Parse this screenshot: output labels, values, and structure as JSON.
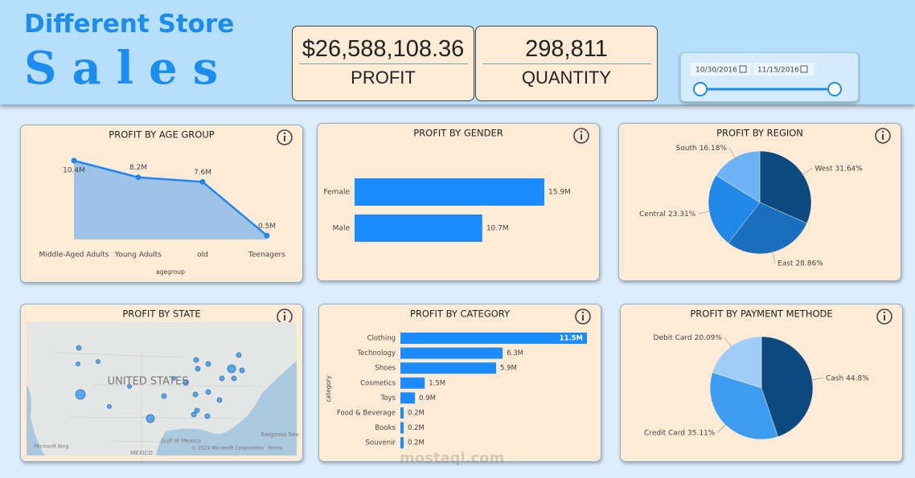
{
  "header": {
    "title": "Different Store",
    "subtitle": "Sales"
  },
  "kpis": [
    {
      "value": "$26,588,108.36",
      "label": "PROFIT"
    },
    {
      "value": "298,811",
      "label": "QUANTITY"
    }
  ],
  "date_range": {
    "start": "10/30/2016",
    "end": "11/15/2016"
  },
  "chart_data": [
    {
      "type": "area",
      "title": "PROFIT BY AGE GROUP",
      "x_label": "agegroup",
      "categories": [
        "Middle-Aged Adults",
        "Young Adults",
        "old",
        "Teenagers"
      ],
      "values": [
        10.4,
        8.2,
        7.6,
        0.5
      ],
      "value_labels": [
        "10.4M",
        "8.2M",
        "7.6M",
        "0.5M"
      ],
      "color": "#1e88f0",
      "fill": "#9fc3e6"
    },
    {
      "type": "hbar",
      "title": "PROFIT BY GENDER",
      "categories": [
        "Female",
        "Male"
      ],
      "values": [
        15.9,
        10.7
      ],
      "value_labels": [
        "15.9M",
        "10.7M"
      ],
      "color": "#1a8cff"
    },
    {
      "type": "pie",
      "title": "PROFIT BY REGION",
      "categories": [
        "West",
        "East",
        "Central",
        "South"
      ],
      "values": [
        31.64,
        28.86,
        23.31,
        16.18
      ],
      "value_labels": [
        "31.64%",
        "28.86%",
        "23.31%",
        "16.18%"
      ],
      "colors": [
        "#0d4a80",
        "#1a6ec0",
        "#2089e8",
        "#6cb4f5"
      ]
    },
    {
      "type": "map",
      "title": "PROFIT BY STATE",
      "labels": [
        "UNITED STATES",
        "MEXICO",
        "Gulf of Mexico",
        "Sargasso Sea",
        "Microsoft Bing",
        "© 2024 Microsoft Corporation",
        "Terms"
      ]
    },
    {
      "type": "hbar",
      "title": "PROFIT BY CATEGORY",
      "y_label": "category",
      "categories": [
        "Clothing",
        "Technology",
        "Shoes",
        "Cosmetics",
        "Toys",
        "Food & Beverage",
        "Books",
        "Souvenir"
      ],
      "values": [
        11.5,
        6.3,
        5.9,
        1.5,
        0.9,
        0.2,
        0.2,
        0.2
      ],
      "value_labels": [
        "11.5M",
        "6.3M",
        "5.9M",
        "1.5M",
        "0.9M",
        "0.2M",
        "0.2M",
        "0.2M"
      ],
      "color": "#1a8cff"
    },
    {
      "type": "pie",
      "title": "PROFIT BY PAYMENT METHODE",
      "categories": [
        "Cash",
        "Credit Card",
        "Debit Card"
      ],
      "values": [
        44.8,
        35.11,
        20.09
      ],
      "value_labels": [
        "44.8%",
        "35.11%",
        "20.09%"
      ],
      "colors": [
        "#0d4a80",
        "#3b9cf0",
        "#9fcdf7"
      ]
    }
  ],
  "watermark": "mostaql.com"
}
